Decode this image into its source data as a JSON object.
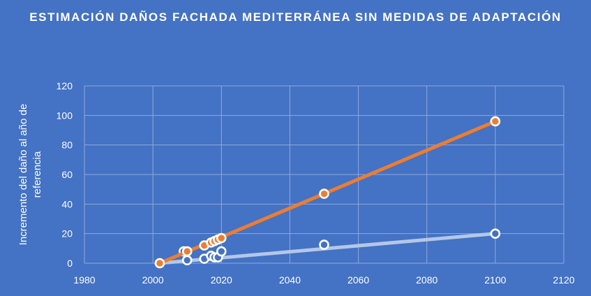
{
  "chart_data": {
    "type": "scatter",
    "title": "ESTIMACIÓN DAÑOS FACHADA MEDITERRÁNEA SIN MEDIDAS DE ADAPTACIÓN",
    "xlabel": "",
    "ylabel": "Incremento del daño al año de referencia",
    "xlim": [
      1980,
      2120
    ],
    "ylim": [
      0,
      120
    ],
    "xticks": [
      1980,
      2000,
      2020,
      2040,
      2060,
      2080,
      2100,
      2120
    ],
    "yticks": [
      0,
      20,
      40,
      60,
      80,
      100,
      120
    ],
    "grid": true,
    "legend": "none",
    "series": [
      {
        "color": "#ed7d31",
        "marker": "circle",
        "points": [
          [
            2002,
            0
          ],
          [
            2010,
            8
          ],
          [
            2015,
            12
          ],
          [
            2017,
            14
          ],
          [
            2018,
            15
          ],
          [
            2019,
            16
          ],
          [
            2020,
            17
          ],
          [
            2050,
            47
          ],
          [
            2100,
            96
          ]
        ],
        "trendline": [
          [
            2002,
            0
          ],
          [
            2100,
            96
          ]
        ]
      },
      {
        "color": "#4472c4",
        "marker": "circle",
        "points": [
          [
            2002,
            0
          ],
          [
            2009,
            8
          ],
          [
            2010,
            2
          ],
          [
            2015,
            3
          ],
          [
            2017,
            5
          ],
          [
            2018,
            4
          ],
          [
            2019,
            4
          ],
          [
            2020,
            8
          ],
          [
            2050,
            12.5
          ],
          [
            2100,
            20
          ]
        ],
        "trendline": [
          [
            2002,
            0
          ],
          [
            2100,
            20
          ]
        ]
      }
    ]
  }
}
